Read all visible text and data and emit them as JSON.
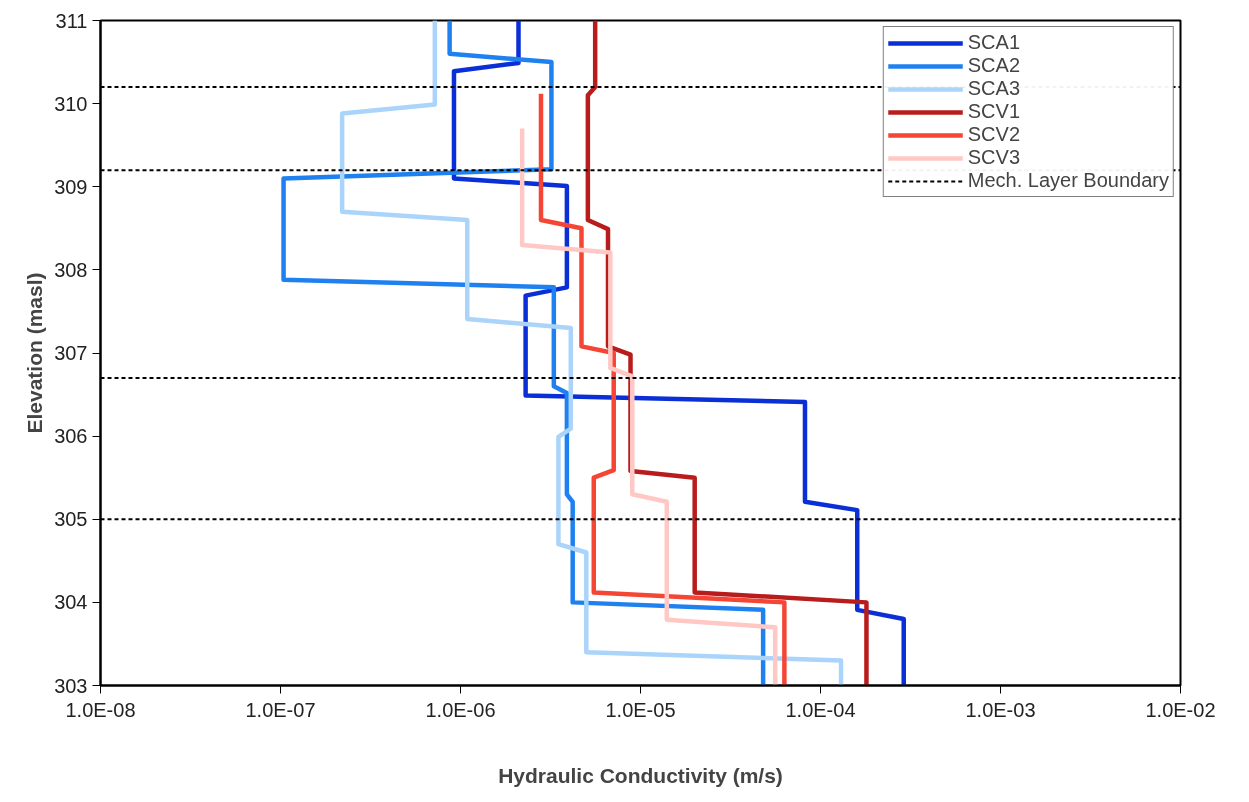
{
  "chart_data": {
    "type": "line",
    "xlabel": "Hydraulic Conductivity (m/s)",
    "ylabel": "Elevation (masl)",
    "log": "x",
    "grid": false,
    "legend": "top right",
    "marker": "none",
    "line_style": "solid",
    "xlim": [
      1e-08,
      0.01
    ],
    "ylim": [
      303,
      311
    ],
    "xticks": [
      {
        "value": 1e-08,
        "label": "1.0E-08"
      },
      {
        "value": 1e-07,
        "label": "1.0E-07"
      },
      {
        "value": 1e-06,
        "label": "1.0E-06"
      },
      {
        "value": 1e-05,
        "label": "1.0E-05"
      },
      {
        "value": 0.0001,
        "label": "1.0E-04"
      },
      {
        "value": 0.001,
        "label": "1.0E-03"
      },
      {
        "value": 0.01,
        "label": "1.0E-02"
      }
    ],
    "yticks": [
      303,
      304,
      305,
      306,
      307,
      308,
      309,
      310,
      311
    ],
    "series": [
      {
        "name": "SCA1",
        "color": "#0a2fd6",
        "x": [
          2.1e-06,
          2.1e-06,
          9.2e-07,
          9.2e-07,
          3.9e-06,
          3.9e-06,
          2.3e-06,
          2.3e-06,
          8.2e-05,
          8.2e-05,
          0.00016,
          0.00016,
          0.00029,
          0.00029
        ],
        "values": [
          311,
          310.49,
          310.39,
          309.1,
          309.01,
          307.79,
          307.69,
          306.49,
          306.41,
          305.21,
          305.11,
          303.91,
          303.8,
          303
        ]
      },
      {
        "name": "SCA2",
        "color": "#1f80f0",
        "x": [
          8.7e-07,
          8.7e-07,
          3.2e-06,
          3.2e-06,
          1.04e-07,
          1.04e-07,
          3.3e-06,
          3.3e-06,
          3.9e-06,
          3.9e-06,
          4.2e-06,
          4.2e-06,
          4.8e-05,
          4.8e-05
        ],
        "values": [
          311,
          310.6,
          310.5,
          309.21,
          309.1,
          307.88,
          307.79,
          306.6,
          306.52,
          305.3,
          305.21,
          304.0,
          303.91,
          303
        ]
      },
      {
        "name": "SCA3",
        "color": "#aad4fa",
        "x": [
          7.2e-07,
          7.2e-07,
          2.2e-07,
          2.2e-07,
          1.09e-06,
          1.09e-06,
          4.1e-06,
          4.1e-06,
          3.5e-06,
          3.5e-06,
          5e-06,
          5e-06,
          0.00013,
          0.00013
        ],
        "values": [
          311,
          309.99,
          309.88,
          308.7,
          308.6,
          307.41,
          307.3,
          306.09,
          305.99,
          304.7,
          304.6,
          303.4,
          303.3,
          303
        ]
      },
      {
        "name": "SCV1",
        "color": "#b81c1c",
        "x": [
          5.6e-06,
          5.6e-06,
          5.1e-06,
          5.1e-06,
          6.6e-06,
          6.6e-06,
          8.8e-06,
          8.8e-06,
          2e-05,
          2e-05,
          0.00018,
          0.00018
        ],
        "values": [
          311,
          310.2,
          310.1,
          308.6,
          308.49,
          307.08,
          306.98,
          305.58,
          305.5,
          304.12,
          304.0,
          303
        ]
      },
      {
        "name": "SCV2",
        "color": "#f54535",
        "x": [
          2.8e-06,
          2.8e-06,
          4.7e-06,
          4.7e-06,
          7.1e-06,
          7.1e-06,
          5.5e-06,
          5.5e-06,
          6.3e-05,
          6.3e-05
        ],
        "values": [
          310.12,
          308.6,
          308.5,
          307.08,
          307.0,
          305.59,
          305.5,
          304.12,
          304.0,
          303
        ]
      },
      {
        "name": "SCV3",
        "color": "#ffc8c4",
        "x": [
          2.2e-06,
          2.2e-06,
          6.8e-06,
          6.8e-06,
          9e-06,
          9e-06,
          1.4e-05,
          1.4e-05,
          5.6e-05,
          5.6e-05
        ],
        "values": [
          309.7,
          308.3,
          308.21,
          306.82,
          306.72,
          305.3,
          305.21,
          303.79,
          303.7,
          303
        ]
      }
    ],
    "ref_lines": [
      {
        "axis": "y",
        "value": 310.2,
        "label": "Mech. Layer Boundary",
        "color": "#000000",
        "line_style": "dashed"
      },
      {
        "axis": "y",
        "value": 309.2,
        "color": "#000000",
        "line_style": "dashed"
      },
      {
        "axis": "y",
        "value": 306.7,
        "color": "#000000",
        "line_style": "dashed"
      },
      {
        "axis": "y",
        "value": 305.0,
        "color": "#000000",
        "line_style": "dashed"
      }
    ]
  }
}
